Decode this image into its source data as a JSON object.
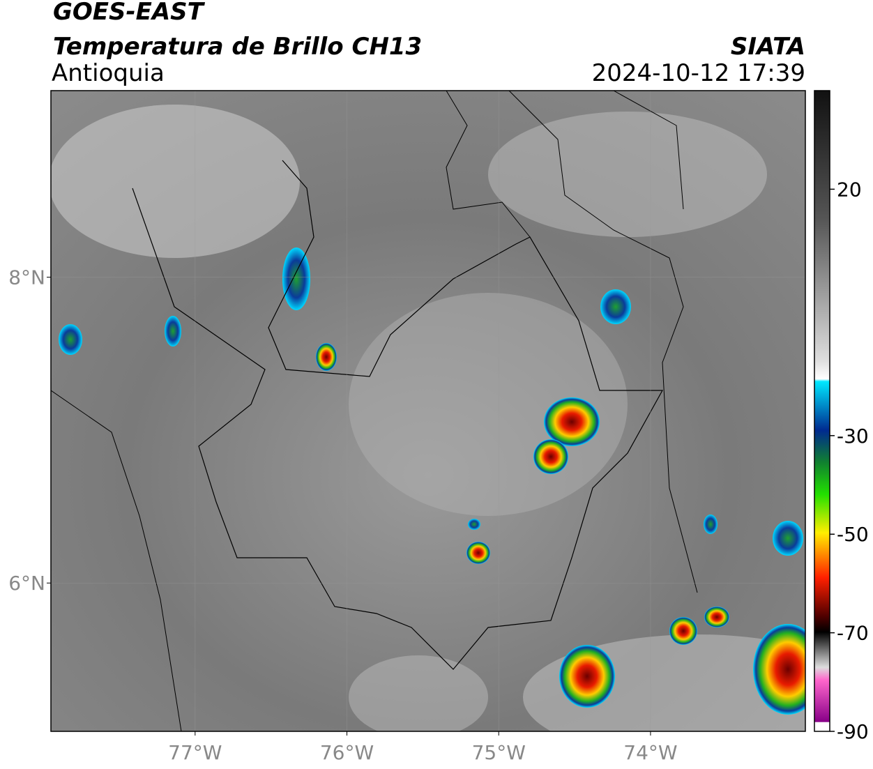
{
  "header": {
    "title": "GOES-EAST",
    "subtitle": "Temperatura de Brillo CH13",
    "region": "Antioquia",
    "source": "SIATA",
    "datetime": "2024-10-12 17:39"
  },
  "map": {
    "xlim": [
      -77.95,
      -72.98
    ],
    "ylim": [
      5.03,
      9.22
    ],
    "xticks": [
      {
        "value": -77,
        "label": "77°W"
      },
      {
        "value": -76,
        "label": "76°W"
      },
      {
        "value": -75,
        "label": "75°W"
      },
      {
        "value": -74,
        "label": "74°W"
      }
    ],
    "yticks": [
      {
        "value": 8,
        "label": "8°N"
      },
      {
        "value": 6,
        "label": "6°N"
      }
    ]
  },
  "colorbar": {
    "lim": [
      -90,
      40
    ],
    "ticks": [
      20,
      -30,
      -50,
      -70,
      -90
    ]
  }
}
